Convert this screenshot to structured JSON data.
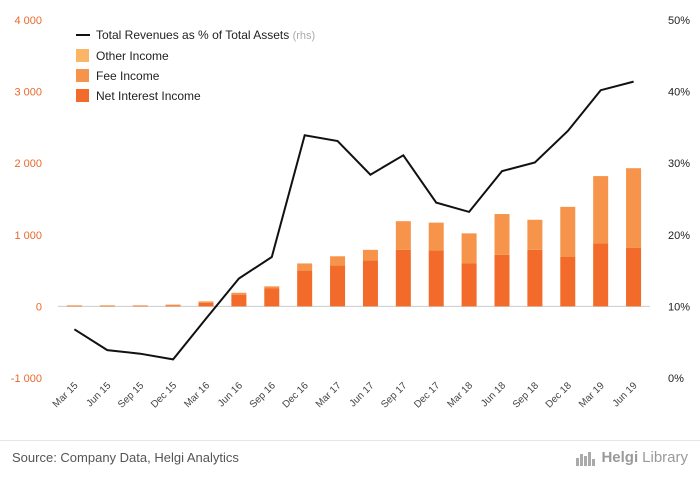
{
  "chart_data": {
    "type": "bar",
    "categories": [
      "Mar 15",
      "Jun 15",
      "Sep 15",
      "Dec 15",
      "Mar 16",
      "Jun 16",
      "Sep 16",
      "Dec 16",
      "Mar 17",
      "Jun 17",
      "Sep 17",
      "Dec 17",
      "Mar 18",
      "Jun 18",
      "Sep 18",
      "Dec 18",
      "Mar 19",
      "Jun 19"
    ],
    "series": [
      {
        "name": "Net Interest Income",
        "kind": "bar",
        "axis": "left",
        "color": "#f26b2a",
        "values": [
          10,
          10,
          10,
          15,
          50,
          160,
          250,
          500,
          570,
          640,
          790,
          780,
          600,
          720,
          790,
          690,
          880,
          820
        ]
      },
      {
        "name": "Fee Income",
        "kind": "bar",
        "axis": "left",
        "color": "#f5944a",
        "values": [
          5,
          5,
          5,
          10,
          20,
          30,
          30,
          100,
          130,
          150,
          400,
          390,
          420,
          570,
          420,
          700,
          940,
          1110
        ]
      },
      {
        "name": "Other Income",
        "kind": "bar",
        "axis": "left",
        "color": "#fbb567",
        "values": [
          0,
          0,
          0,
          0,
          0,
          0,
          0,
          0,
          0,
          0,
          0,
          0,
          0,
          0,
          0,
          0,
          0,
          0
        ]
      },
      {
        "name": "Total Revenues as % of Total Assets",
        "legend_note": "(rhs)",
        "kind": "line",
        "axis": "right",
        "color": "#111111",
        "values": [
          6.8,
          3.9,
          3.4,
          2.6,
          8.3,
          13.9,
          16.9,
          33.9,
          33.1,
          28.4,
          31.1,
          24.5,
          23.2,
          28.9,
          30.1,
          34.5,
          40.2,
          41.4
        ]
      }
    ],
    "y_left": {
      "ylim": [
        -1000,
        4000
      ],
      "ticks": [
        -1000,
        0,
        1000,
        2000,
        3000,
        4000
      ],
      "tick_labels": [
        "-1 000",
        "0",
        "1 000",
        "2 000",
        "3 000",
        "4 000"
      ]
    },
    "y_right": {
      "ylim": [
        0,
        50
      ],
      "ticks": [
        0,
        10,
        20,
        30,
        40,
        50
      ],
      "tick_labels": [
        "0%",
        "10%",
        "20%",
        "30%",
        "40%",
        "50%"
      ]
    },
    "legend_position": "top-left",
    "grid": false
  },
  "footer": {
    "source": "Source: Company Data, Helgi Analytics",
    "logo_part1": "Helgi",
    "logo_part2": "Library"
  }
}
